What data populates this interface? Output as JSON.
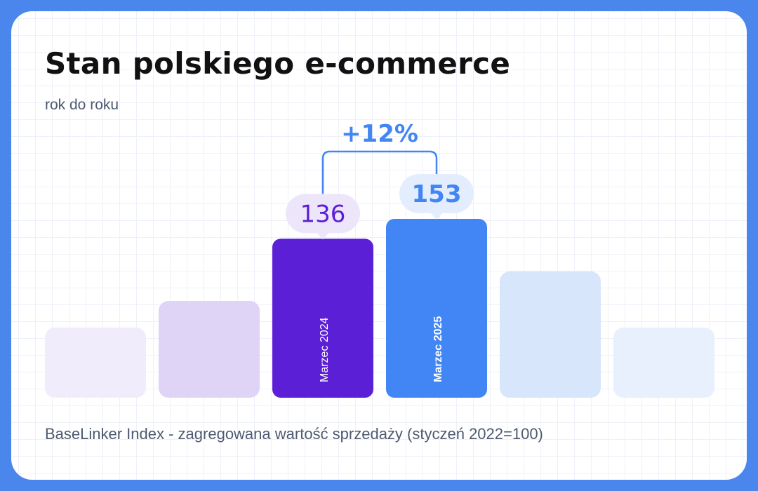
{
  "title": "Stan polskiego e-commerce",
  "subtitle": "rok do roku",
  "footer": "BaseLinker Index - zagregowana wartość sprzedaży (styczeń 2022=100)",
  "colors": {
    "background": "#4a86ec",
    "card": "#ffffff",
    "purple": "#5b1fd6",
    "blue": "#4285f4",
    "purple_light": "#ede6fa",
    "blue_light": "#e3edfd"
  },
  "chart_data": {
    "type": "bar",
    "title": "Stan polskiego e-commerce",
    "subtitle": "rok do roku",
    "categories": [
      "",
      "",
      "Marzec 2024",
      "Marzec 2025",
      "",
      ""
    ],
    "values": [
      null,
      null,
      136,
      153,
      null,
      null
    ],
    "highlighted": [
      "Marzec 2024",
      "Marzec 2025"
    ],
    "value_labels": [
      "",
      "",
      "136",
      "153",
      "",
      ""
    ],
    "change_label": "+12%",
    "note": "BaseLinker Index - zagregowana wartość sprzedaży (styczeń 2022=100)",
    "grid": true,
    "legend": "none"
  }
}
